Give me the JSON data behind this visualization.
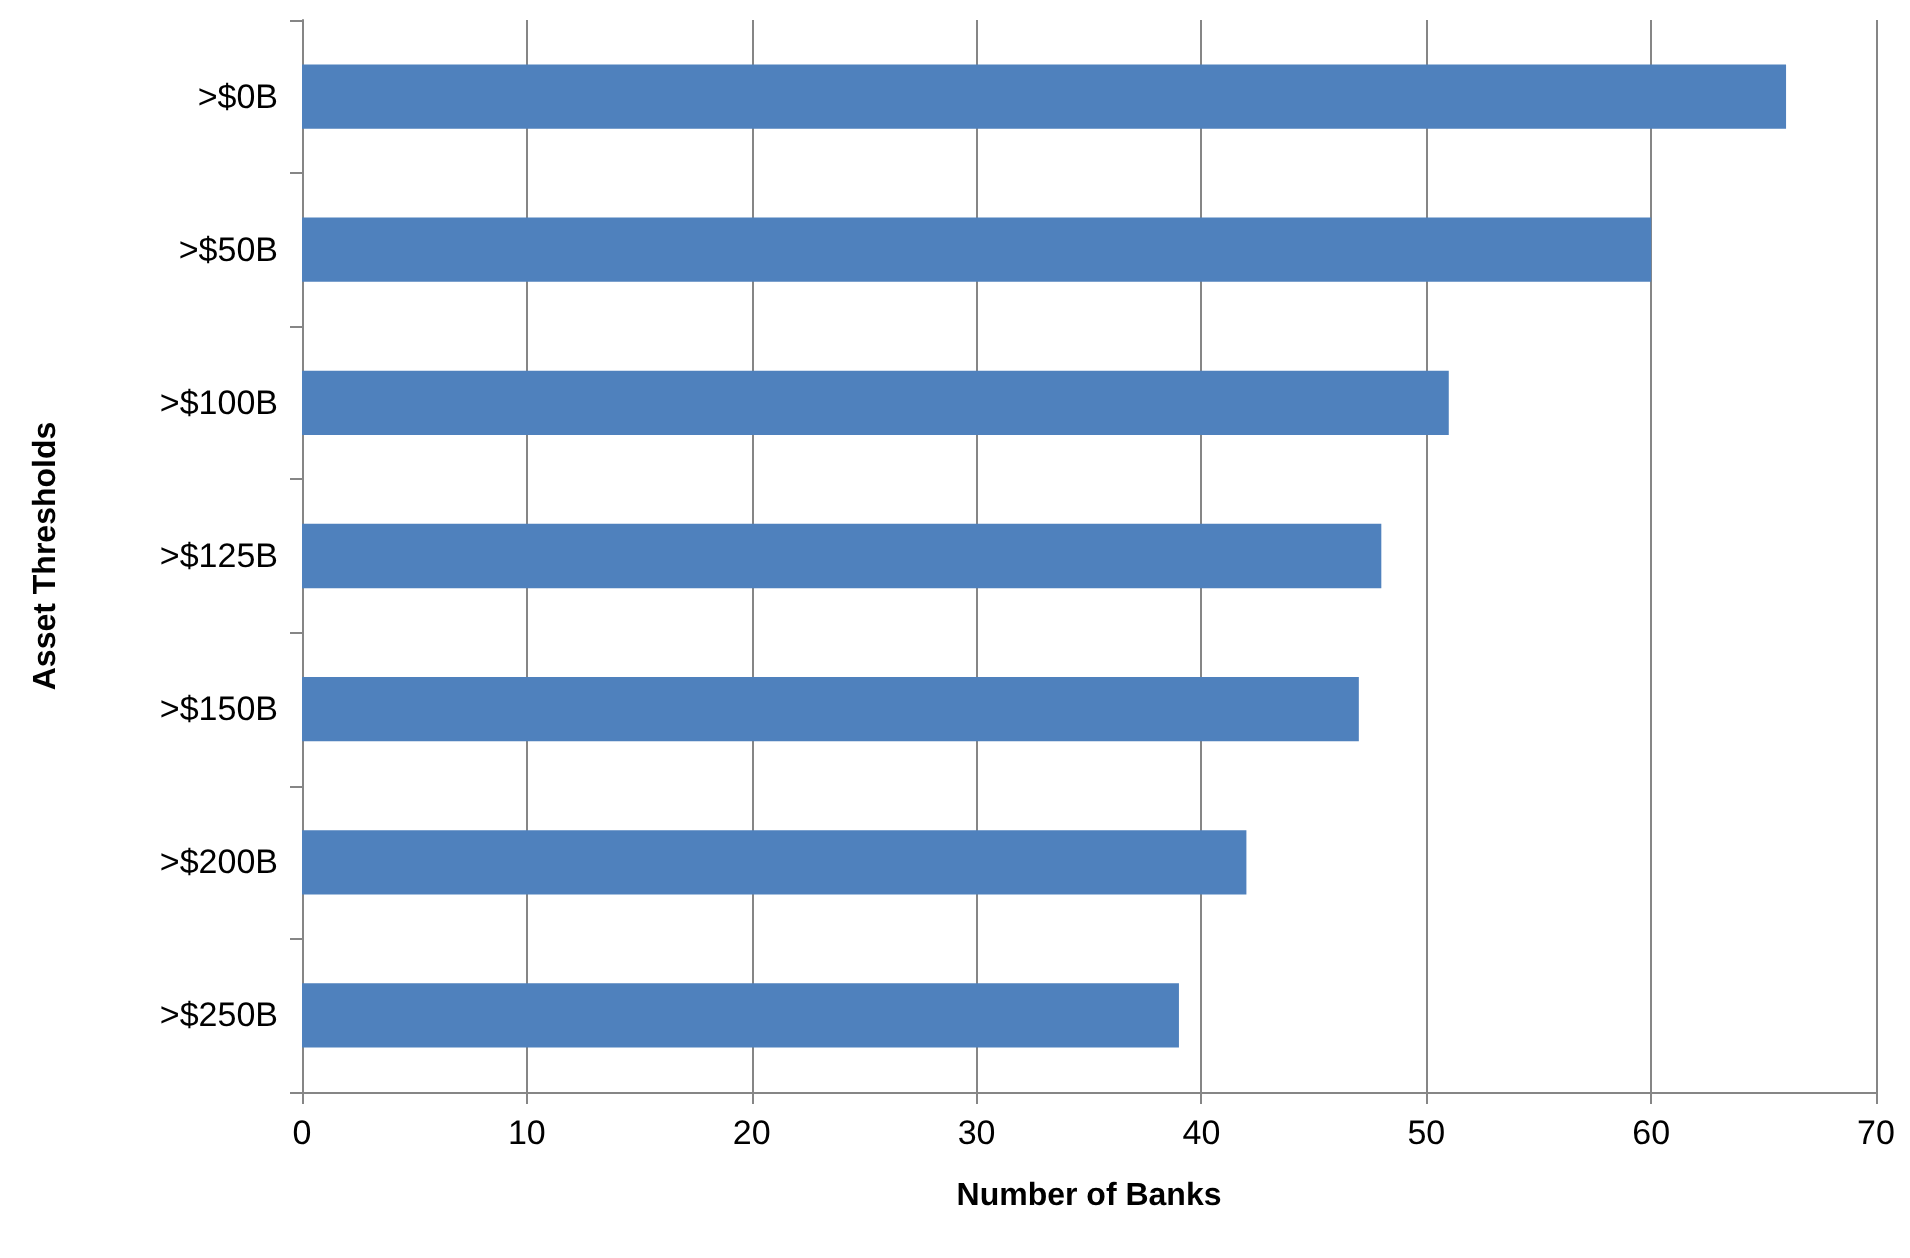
{
  "chart_data": {
    "type": "bar",
    "orientation": "horizontal",
    "xlabel": "Number of Banks",
    "ylabel": "Asset Thresholds",
    "categories": [
      ">$0B",
      ">$50B",
      ">$100B",
      ">$125B",
      ">$150B",
      ">$200B",
      ">$250B"
    ],
    "values": [
      66,
      60,
      51,
      48,
      47,
      42,
      39
    ],
    "color": "#4f81bd",
    "xlim": [
      0,
      70
    ],
    "xticks": [
      0,
      10,
      20,
      30,
      40,
      50,
      60,
      70
    ],
    "grid": "x"
  }
}
